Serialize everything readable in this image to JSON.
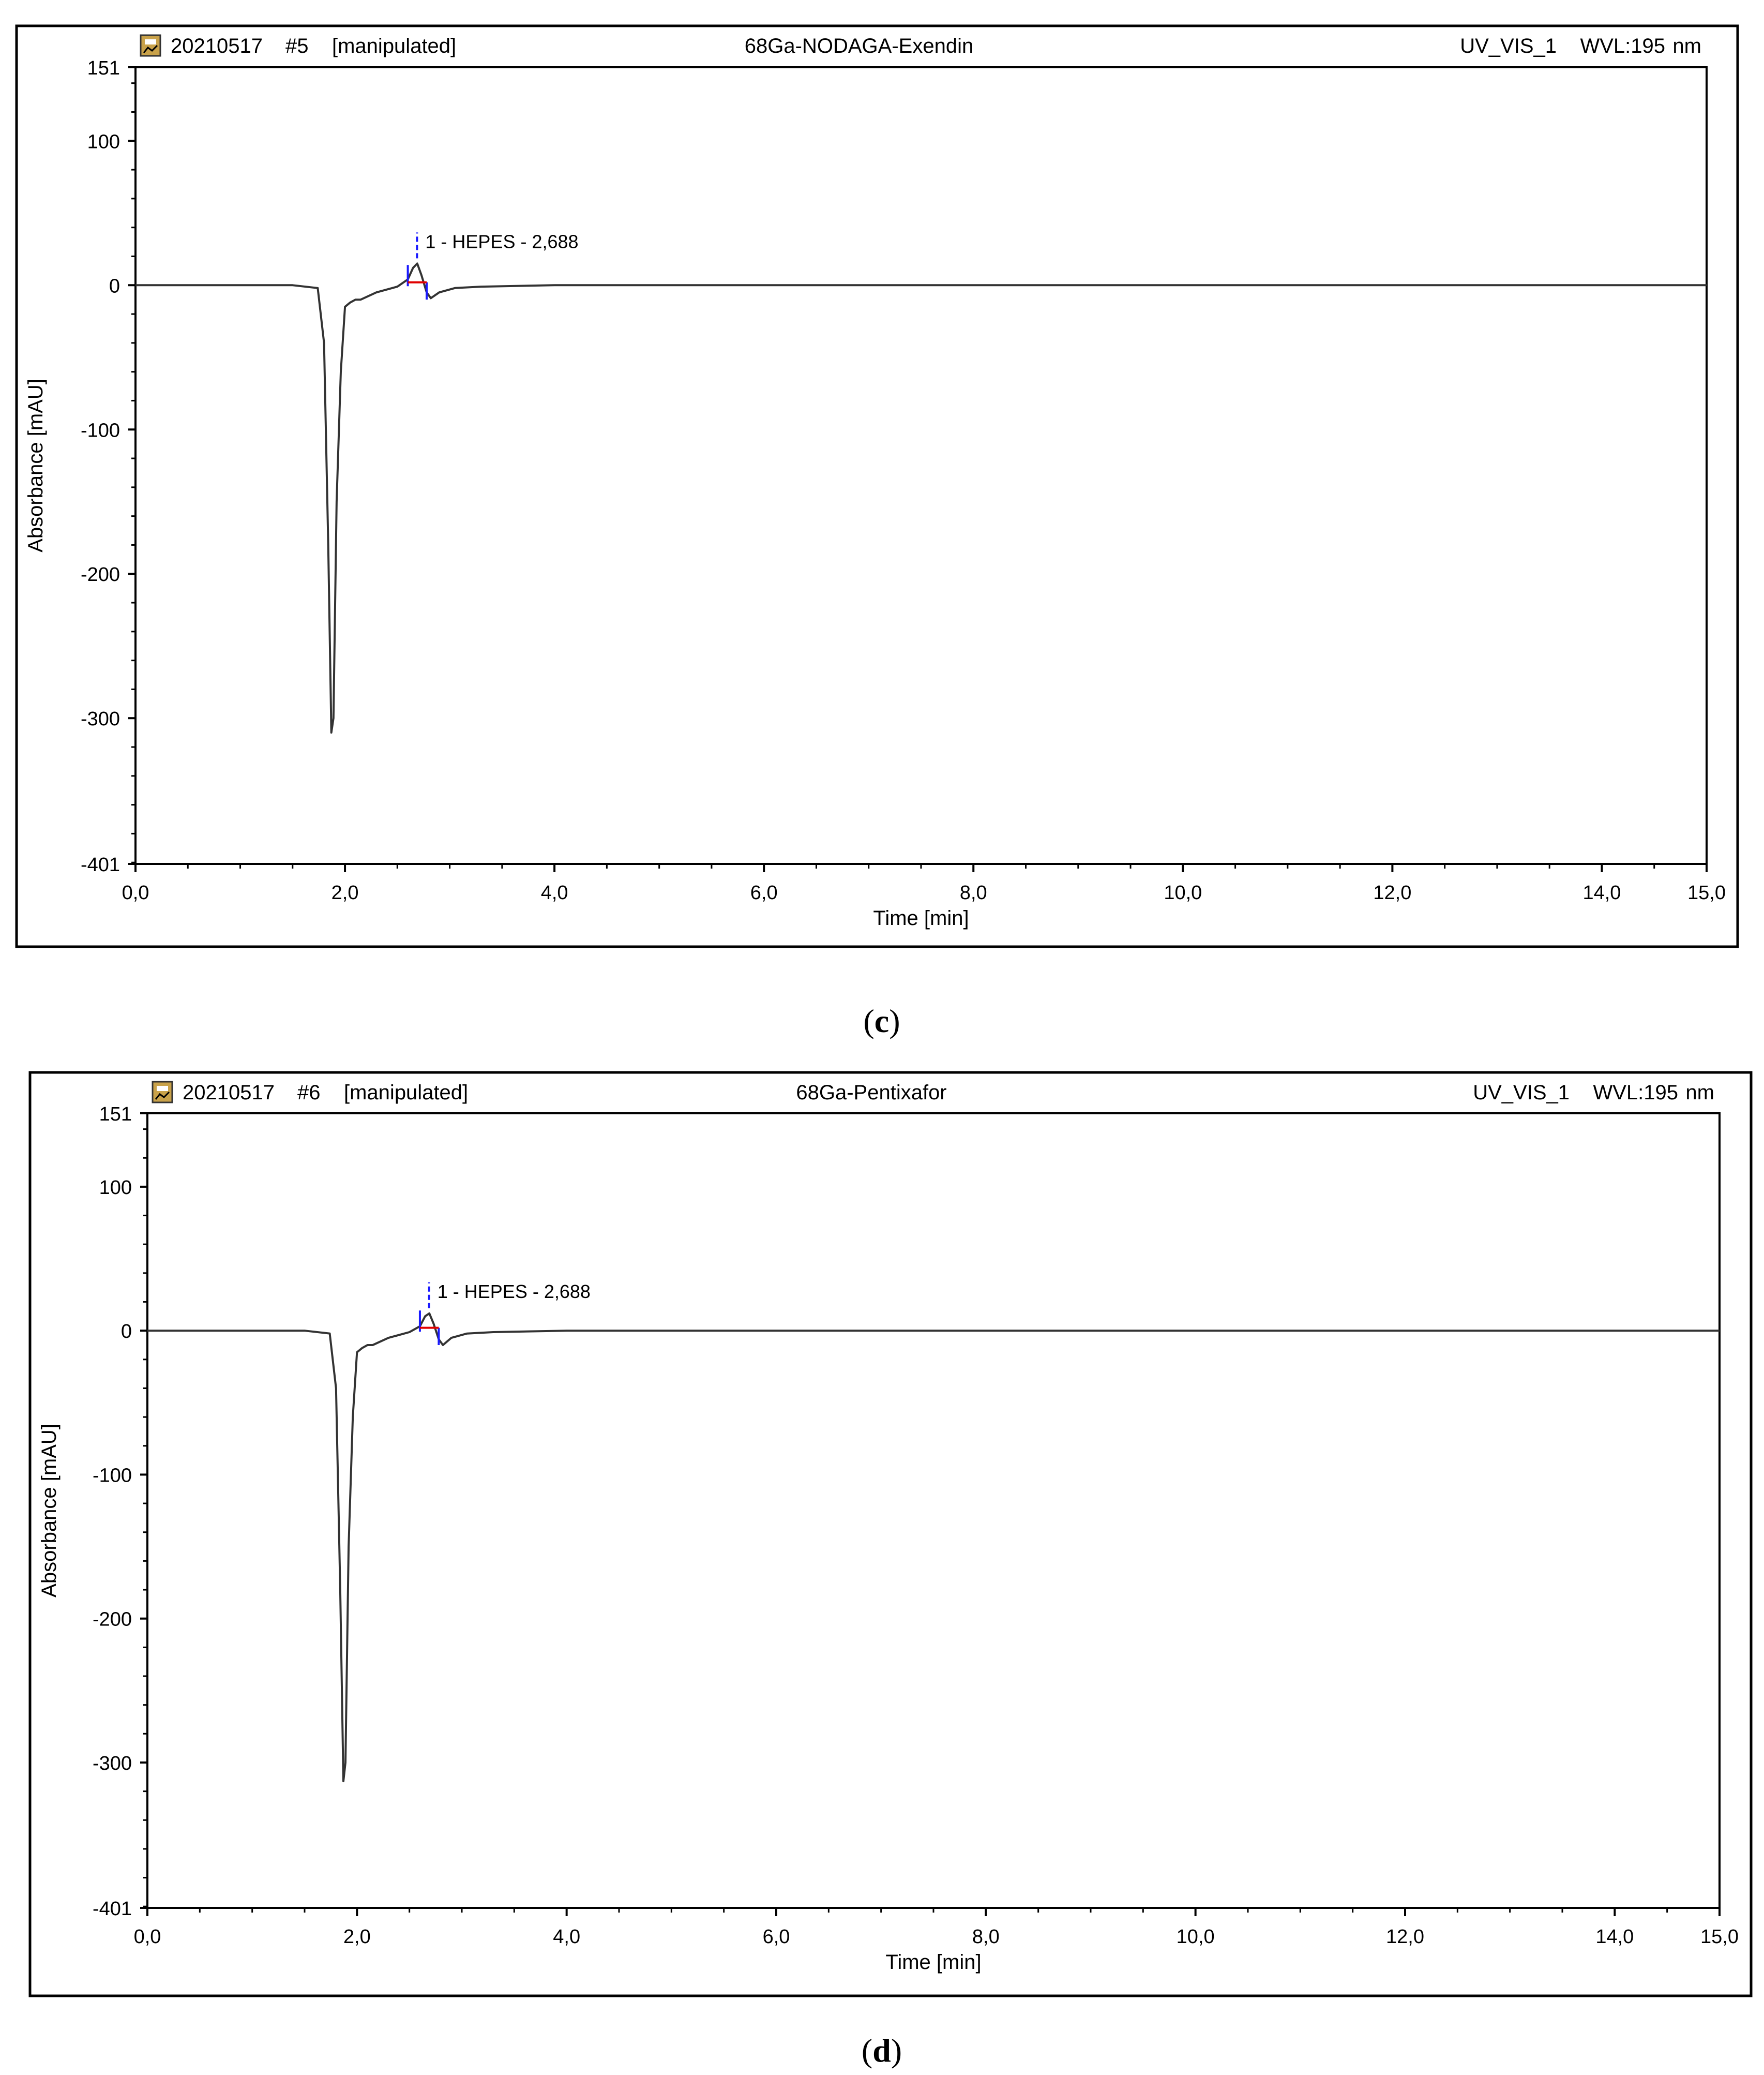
{
  "panels": [
    {
      "caption_open": "(",
      "caption_letter": "c",
      "caption_close": ")",
      "header": {
        "run_id": "20210517",
        "sample_no": "#5",
        "status": "[manipulated]",
        "title": "68Ga-NODAGA-Exendin",
        "channel": "UV_VIS_1",
        "wavelength": "WVL:195",
        "wavelength_unit": "nm",
        "icon": "chromatogram-file-icon"
      },
      "chart_data": {
        "type": "line",
        "xlabel": "Time [min]",
        "ylabel": "Absorbance [mAU]",
        "xlim": [
          0,
          15
        ],
        "ylim": [
          -401,
          151
        ],
        "x_ticks": [
          "0,0",
          "2,0",
          "4,0",
          "6,0",
          "8,0",
          "10,0",
          "12,0",
          "14,0",
          "15,0"
        ],
        "x_tick_values": [
          0,
          2,
          4,
          6,
          8,
          10,
          12,
          14,
          15
        ],
        "y_ticks": [
          "151",
          "100",
          "0",
          "-100",
          "-200",
          "-300",
          "-401"
        ],
        "y_tick_values": [
          151,
          100,
          0,
          -100,
          -200,
          -300,
          -401
        ],
        "grid": false,
        "series": [
          {
            "x": [
              0.0,
              1.5,
              1.74,
              1.8,
              1.84,
              1.87,
              1.89,
              1.92,
              1.96,
              2.0,
              2.05,
              2.1,
              2.15,
              2.3,
              2.5,
              2.6,
              2.65,
              2.69,
              2.73,
              2.78,
              2.82,
              2.9,
              3.05,
              3.3,
              4.0,
              6.0,
              8.0,
              10.0,
              12.0,
              14.0,
              15.0
            ],
            "y": [
              0,
              0,
              -2,
              -40,
              -180,
              -310,
              -300,
              -150,
              -60,
              -15,
              -12,
              -10,
              -10,
              -5,
              -1,
              4,
              12,
              15,
              7,
              -5,
              -9,
              -5,
              -2,
              -1,
              0,
              0,
              0,
              0,
              0,
              0,
              0
            ]
          }
        ],
        "annotations": [
          {
            "text": "1 - HEPES - 2,688",
            "x": 2.688,
            "y": 15
          }
        ]
      }
    },
    {
      "caption_open": "(",
      "caption_letter": "d",
      "caption_close": ")",
      "header": {
        "run_id": "20210517",
        "sample_no": "#6",
        "status": "[manipulated]",
        "title": "68Ga-Pentixafor",
        "channel": "UV_VIS_1",
        "wavelength": "WVL:195",
        "wavelength_unit": "nm",
        "icon": "chromatogram-file-icon"
      },
      "chart_data": {
        "type": "line",
        "xlabel": "Time [min]",
        "ylabel": "Absorbance [mAU]",
        "xlim": [
          0,
          15
        ],
        "ylim": [
          -401,
          151
        ],
        "x_ticks": [
          "0,0",
          "2,0",
          "4,0",
          "6,0",
          "8,0",
          "10,0",
          "12,0",
          "14,0",
          "15,0"
        ],
        "x_tick_values": [
          0,
          2,
          4,
          6,
          8,
          10,
          12,
          14,
          15
        ],
        "y_ticks": [
          "151",
          "100",
          "0",
          "-100",
          "-200",
          "-300",
          "-401"
        ],
        "y_tick_values": [
          151,
          100,
          0,
          -100,
          -200,
          -300,
          -401
        ],
        "grid": false,
        "series": [
          {
            "x": [
              0.0,
              1.5,
              1.74,
              1.8,
              1.84,
              1.87,
              1.89,
              1.92,
              1.96,
              2.0,
              2.05,
              2.1,
              2.15,
              2.3,
              2.5,
              2.6,
              2.65,
              2.69,
              2.73,
              2.78,
              2.82,
              2.9,
              3.05,
              3.3,
              4.0,
              6.0,
              8.0,
              10.0,
              12.0,
              14.0,
              15.0
            ],
            "y": [
              0,
              0,
              -2,
              -40,
              -180,
              -313,
              -300,
              -150,
              -60,
              -15,
              -12,
              -10,
              -10,
              -5,
              -1,
              3,
              10,
              12,
              5,
              -6,
              -10,
              -5,
              -2,
              -1,
              0,
              0,
              0,
              0,
              0,
              0,
              0
            ]
          }
        ],
        "annotations": [
          {
            "text": "1 - HEPES - 2,688",
            "x": 2.688,
            "y": 12
          }
        ]
      }
    }
  ]
}
